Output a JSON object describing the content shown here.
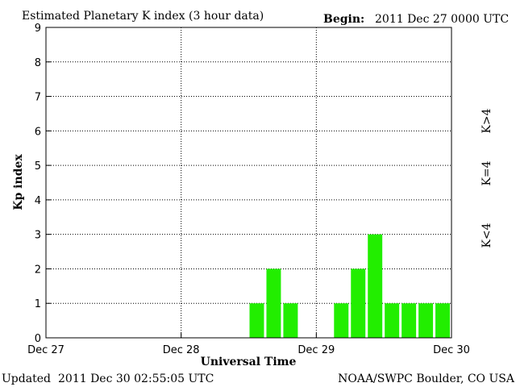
{
  "header": {
    "title": "Estimated Planetary K index (3 hour data)",
    "begin_label": "Begin:",
    "begin_value": "2011 Dec 27 0000 UTC"
  },
  "footer": {
    "updated_label": "Updated",
    "updated_value": "2011 Dec 30 02:55:05 UTC",
    "credit": "NOAA/SWPC Boulder, CO USA"
  },
  "legend": {
    "gt4": {
      "label": "K>4",
      "color": "#ff3300"
    },
    "eq4": {
      "label": "K=4",
      "color": "#ffcc00"
    },
    "lt4": {
      "label": "K<4",
      "color": "#22ee00"
    }
  },
  "chart_data": {
    "type": "bar",
    "xlabel": "Universal Time",
    "ylabel": "Kp index",
    "ylim": [
      0,
      9
    ],
    "yticks": [
      0,
      1,
      2,
      3,
      4,
      5,
      6,
      7,
      8,
      9
    ],
    "x_range_hours": [
      0,
      72
    ],
    "interval_hours": 3,
    "xticks": [
      {
        "hour": 0,
        "label": "Dec 27"
      },
      {
        "hour": 24,
        "label": "Dec 28"
      },
      {
        "hour": 48,
        "label": "Dec 29"
      },
      {
        "hour": 72,
        "label": "Dec 30"
      }
    ],
    "grid": "dotted",
    "bar_color": "#22ee00",
    "bars": [
      {
        "start_hour": 36,
        "value": 1
      },
      {
        "start_hour": 39,
        "value": 2
      },
      {
        "start_hour": 42,
        "value": 1
      },
      {
        "start_hour": 51,
        "value": 1
      },
      {
        "start_hour": 54,
        "value": 2
      },
      {
        "start_hour": 57,
        "value": 3
      },
      {
        "start_hour": 60,
        "value": 1
      },
      {
        "start_hour": 63,
        "value": 1
      },
      {
        "start_hour": 66,
        "value": 1
      },
      {
        "start_hour": 69,
        "value": 1
      }
    ]
  }
}
